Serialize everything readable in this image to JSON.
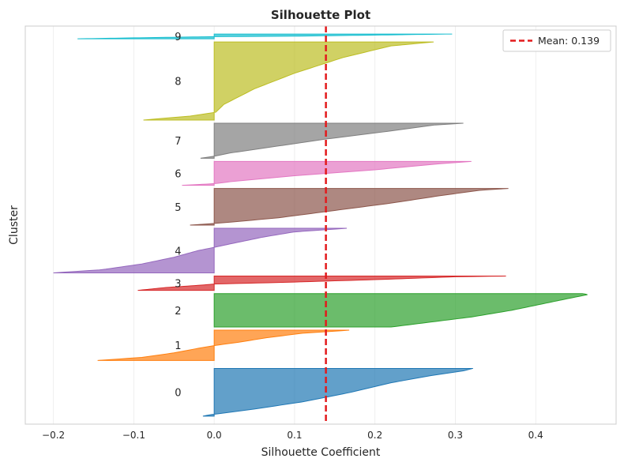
{
  "chart_data": {
    "type": "area",
    "title": "Silhouette Plot",
    "xlabel": "Silhouette Coefficient",
    "ylabel": "Cluster",
    "xlim": [
      -0.235,
      0.5
    ],
    "xticks": [
      -0.2,
      -0.1,
      0.0,
      0.1,
      0.2,
      0.3,
      0.4
    ],
    "xtick_labels": [
      "−0.2",
      "−0.1",
      "0.0",
      "0.1",
      "0.2",
      "0.3",
      "0.4"
    ],
    "grid": true,
    "legend_position": "top-right",
    "mean": {
      "value": 0.139,
      "label": "Mean: 0.139",
      "color": "#e31a1c"
    },
    "clusters": [
      {
        "label": "0",
        "color": "#1f77b4",
        "y_start": 10,
        "y_end": 70,
        "profile": [
          [
            0,
            0.322
          ],
          [
            0.05,
            0.31
          ],
          [
            0.15,
            0.27
          ],
          [
            0.3,
            0.22
          ],
          [
            0.5,
            0.17
          ],
          [
            0.7,
            0.11
          ],
          [
            0.85,
            0.05
          ],
          [
            0.95,
            0.005
          ],
          [
            0.97,
            -0.005
          ],
          [
            1,
            -0.014
          ]
        ]
      },
      {
        "label": "1",
        "color": "#ff7f0e",
        "y_start": 80,
        "y_end": 118,
        "profile": [
          [
            0,
            0.168
          ],
          [
            0.1,
            0.11
          ],
          [
            0.25,
            0.065
          ],
          [
            0.4,
            0.03
          ],
          [
            0.5,
            0.002
          ],
          [
            0.6,
            -0.02
          ],
          [
            0.75,
            -0.05
          ],
          [
            0.9,
            -0.09
          ],
          [
            1,
            -0.145
          ]
        ]
      },
      {
        "label": "2",
        "color": "#2ca02c",
        "y_start": 122,
        "y_end": 164,
        "profile": [
          [
            0,
            0.458
          ],
          [
            0.03,
            0.465
          ],
          [
            0.15,
            0.44
          ],
          [
            0.3,
            0.41
          ],
          [
            0.5,
            0.37
          ],
          [
            0.7,
            0.32
          ],
          [
            0.85,
            0.27
          ],
          [
            1,
            0.22
          ]
        ]
      },
      {
        "label": "3",
        "color": "#d62728",
        "y_start": 168,
        "y_end": 186,
        "profile": [
          [
            0,
            0.363
          ],
          [
            0.05,
            0.3
          ],
          [
            0.25,
            0.2
          ],
          [
            0.45,
            0.08
          ],
          [
            0.55,
            0.002
          ],
          [
            0.65,
            -0.02
          ],
          [
            0.8,
            -0.06
          ],
          [
            1,
            -0.095
          ]
        ]
      },
      {
        "label": "4",
        "color": "#9467bd",
        "y_start": 190,
        "y_end": 246,
        "profile": [
          [
            0,
            0.165
          ],
          [
            0.08,
            0.1
          ],
          [
            0.2,
            0.06
          ],
          [
            0.35,
            0.02
          ],
          [
            0.42,
            0.002
          ],
          [
            0.5,
            -0.02
          ],
          [
            0.65,
            -0.05
          ],
          [
            0.8,
            -0.09
          ],
          [
            0.93,
            -0.14
          ],
          [
            1,
            -0.2
          ]
        ]
      },
      {
        "label": "5",
        "color": "#8c564b",
        "y_start": 250,
        "y_end": 296,
        "profile": [
          [
            0,
            0.366
          ],
          [
            0.05,
            0.33
          ],
          [
            0.2,
            0.28
          ],
          [
            0.4,
            0.22
          ],
          [
            0.6,
            0.15
          ],
          [
            0.8,
            0.08
          ],
          [
            0.92,
            0.02
          ],
          [
            0.95,
            0.003
          ],
          [
            0.97,
            -0.01
          ],
          [
            1,
            -0.03
          ]
        ]
      },
      {
        "label": "6",
        "color": "#e377c2",
        "y_start": 300,
        "y_end": 330,
        "profile": [
          [
            0,
            0.32
          ],
          [
            0.1,
            0.28
          ],
          [
            0.35,
            0.2
          ],
          [
            0.6,
            0.1
          ],
          [
            0.85,
            0.02
          ],
          [
            0.92,
            0.003
          ],
          [
            0.95,
            -0.01
          ],
          [
            1,
            -0.04
          ]
        ]
      },
      {
        "label": "7",
        "color": "#7f7f7f",
        "y_start": 334,
        "y_end": 378,
        "profile": [
          [
            0,
            0.31
          ],
          [
            0.05,
            0.275
          ],
          [
            0.25,
            0.21
          ],
          [
            0.45,
            0.14
          ],
          [
            0.65,
            0.08
          ],
          [
            0.85,
            0.02
          ],
          [
            0.93,
            0.003
          ],
          [
            0.96,
            -0.005
          ],
          [
            1,
            -0.017
          ]
        ]
      },
      {
        "label": "8",
        "color": "#bcbd22",
        "y_start": 382,
        "y_end": 480,
        "profile": [
          [
            0,
            0.273
          ],
          [
            0.05,
            0.22
          ],
          [
            0.2,
            0.16
          ],
          [
            0.4,
            0.1
          ],
          [
            0.6,
            0.05
          ],
          [
            0.8,
            0.012
          ],
          [
            0.9,
            0.002
          ],
          [
            0.95,
            -0.03
          ],
          [
            1,
            -0.088
          ]
        ]
      },
      {
        "label": "9",
        "color": "#17becf",
        "y_start": 484,
        "y_end": 490,
        "profile": [
          [
            0,
            0.296
          ],
          [
            0.45,
            0.1
          ],
          [
            0.55,
            0.002
          ],
          [
            0.6,
            -0.02
          ],
          [
            0.8,
            -0.1
          ],
          [
            1,
            -0.17
          ]
        ]
      }
    ]
  }
}
